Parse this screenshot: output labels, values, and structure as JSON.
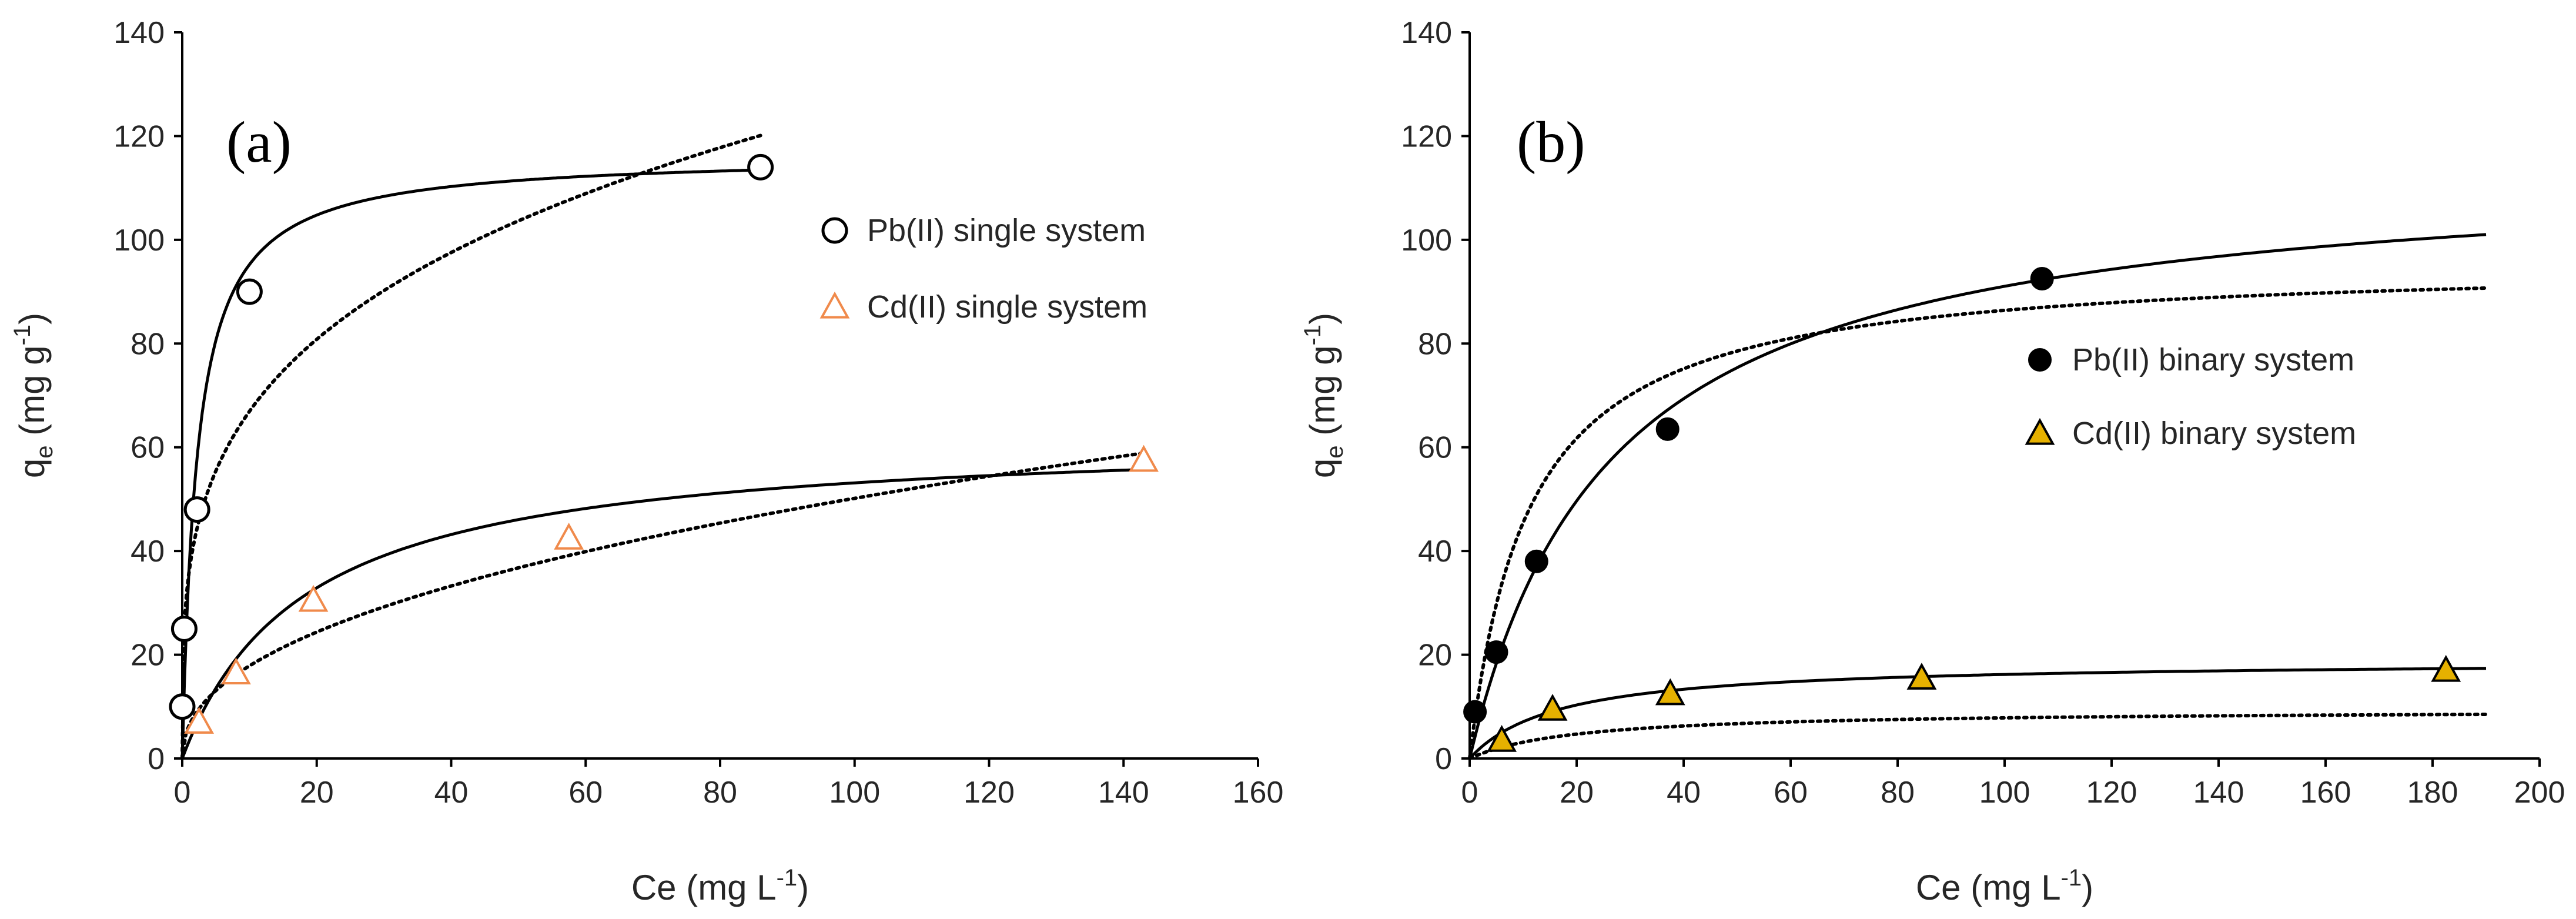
{
  "chart_data": [
    {
      "type": "scatter",
      "panel_label": "(a)",
      "xlabel": "Ce (mg L",
      "xlabel_sup": "-1",
      "xlabel_close": ")",
      "ylabel_main": "q",
      "ylabel_sub": "e",
      "ylabel_unit": " (mg g",
      "ylabel_sup": "-1",
      "ylabel_close": ")",
      "xlim": [
        0,
        160
      ],
      "ylim": [
        0,
        140
      ],
      "xticks": [
        0,
        20,
        40,
        60,
        80,
        100,
        120,
        140,
        160
      ],
      "yticks": [
        0,
        20,
        40,
        60,
        80,
        100,
        120,
        140
      ],
      "legend_position": "right-middle",
      "series": [
        {
          "name": "Pb(II) single system",
          "marker": "open-circle",
          "color": "#000000",
          "points": [
            [
              0,
              10
            ],
            [
              0.3,
              25
            ],
            [
              2.2,
              48
            ],
            [
              10,
              90
            ],
            [
              86,
              114
            ]
          ],
          "fit_solid": {
            "model": "langmuir",
            "qmax": 116.4,
            "K": 0.45,
            "xmax": 86
          },
          "fit_dotted": {
            "model": "freundlich",
            "Kf": 35.8,
            "n": 3.68,
            "xmax": 86
          }
        },
        {
          "name": "Cd(II) single system",
          "marker": "open-triangle",
          "color": "#f08a4b",
          "points": [
            [
              2.5,
              7
            ],
            [
              8,
              16.5
            ],
            [
              19.5,
              30.5
            ],
            [
              57.5,
              42.5
            ],
            [
              143,
              57.5
            ]
          ],
          "fit_solid": {
            "model": "langmuir",
            "qmax": 62.8,
            "K": 0.055,
            "xmax": 143
          },
          "fit_dotted": {
            "model": "freundlich",
            "Kf": 6.36,
            "n": 2.23,
            "xmax": 143
          }
        }
      ]
    },
    {
      "type": "scatter",
      "panel_label": "(b)",
      "xlabel": "Ce (mg L",
      "xlabel_sup": "-1",
      "xlabel_close": ")",
      "ylabel_main": "q",
      "ylabel_sub": "e",
      "ylabel_unit": " (mg g",
      "ylabel_sup": "-1",
      "ylabel_close": ")",
      "xlim": [
        0,
        200
      ],
      "ylim": [
        0,
        140
      ],
      "xticks": [
        0,
        20,
        40,
        60,
        80,
        100,
        120,
        140,
        160,
        180,
        200
      ],
      "yticks": [
        0,
        20,
        40,
        60,
        80,
        100,
        120,
        140
      ],
      "legend_position": "right-middle",
      "series": [
        {
          "name": "Pb(II) binary system",
          "marker": "filled-circle",
          "color": "#000000",
          "points": [
            [
              1,
              9
            ],
            [
              5,
              20.5
            ],
            [
              12.5,
              38
            ],
            [
              37,
              63.5
            ],
            [
              107,
              92.5
            ]
          ],
          "fit_solid": {
            "model": "langmuir",
            "qmax": 115,
            "K": 0.038,
            "xmax": 190
          },
          "fit_dotted": {
            "model": "langmuir",
            "qmax": 96,
            "K": 0.09,
            "xmax": 190
          }
        },
        {
          "name": "Cd(II) binary system",
          "marker": "filled-triangle",
          "color": "#e6b100",
          "points": [
            [
              6,
              3.5
            ],
            [
              15.5,
              9.5
            ],
            [
              37.5,
              12.5
            ],
            [
              84.5,
              15.5
            ],
            [
              182.5,
              17
            ]
          ],
          "fit_solid": {
            "model": "langmuir",
            "qmax": 18.9,
            "K": 0.06,
            "xmax": 190
          },
          "fit_dotted": {
            "model": "langmuir",
            "qmax": 9.4,
            "K": 0.05,
            "xmax": 190
          }
        }
      ]
    }
  ]
}
